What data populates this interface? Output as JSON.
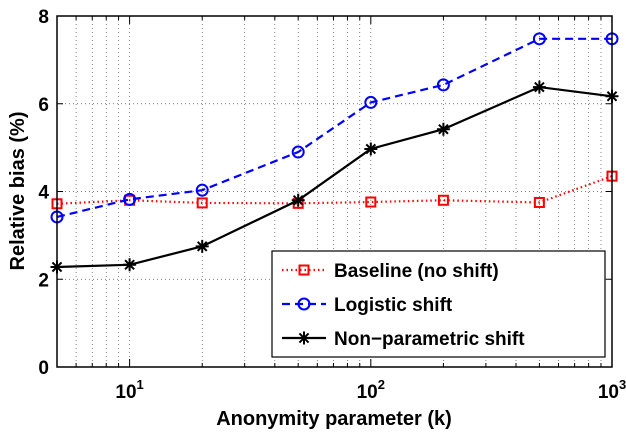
{
  "chart_data": {
    "type": "line",
    "xscale": "log",
    "xlim": [
      5,
      1000
    ],
    "ylim": [
      0,
      8
    ],
    "grid": true,
    "xlabel": "Anonymity parameter (k)",
    "ylabel": "Relative bias (%)",
    "xticks": [
      {
        "value": 10,
        "base": "10",
        "exp": "1"
      },
      {
        "value": 100,
        "base": "10",
        "exp": "2"
      },
      {
        "value": 1000,
        "base": "10",
        "exp": "3"
      }
    ],
    "yticks": [
      0,
      2,
      4,
      6,
      8
    ],
    "x": [
      5,
      10,
      20,
      50,
      100,
      200,
      500,
      1000
    ],
    "legend_position": "bottom-right",
    "series": [
      {
        "name": "Baseline (no shift)",
        "color": "#ff0000",
        "dash": "dotted",
        "marker": "square",
        "values": [
          3.72,
          3.8,
          3.74,
          3.73,
          3.76,
          3.8,
          3.75,
          4.35
        ]
      },
      {
        "name": "Logistic shift",
        "color": "#0000ff",
        "dash": "dashed",
        "marker": "circle",
        "values": [
          3.42,
          3.82,
          4.03,
          4.9,
          6.03,
          6.43,
          7.48,
          7.48
        ]
      },
      {
        "name": "Non−parametric shift",
        "color": "#000000",
        "dash": "solid",
        "marker": "star",
        "values": [
          2.28,
          2.33,
          2.75,
          3.8,
          4.97,
          5.42,
          6.38,
          6.17
        ]
      }
    ]
  }
}
